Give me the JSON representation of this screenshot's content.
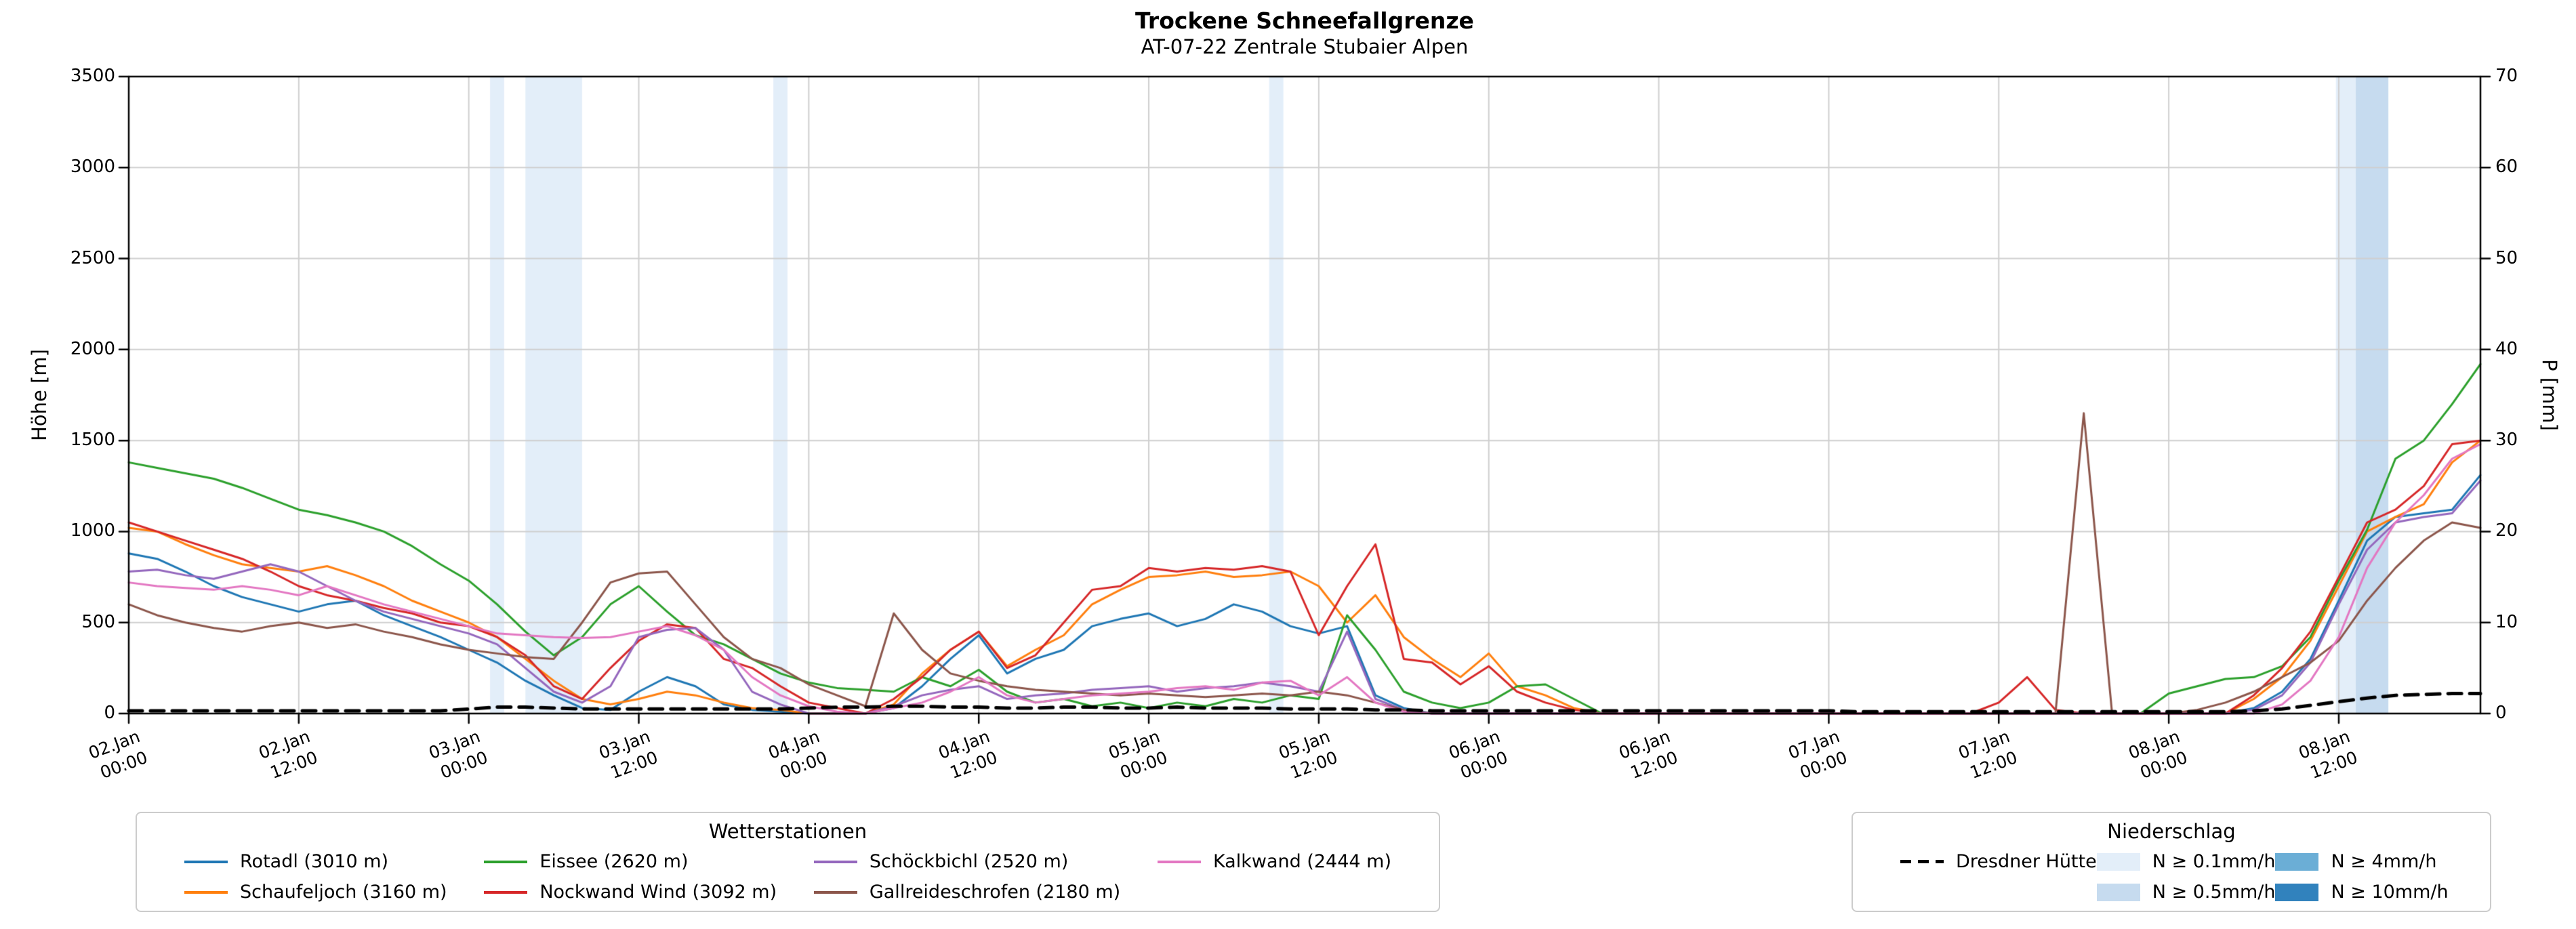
{
  "title": "Trockene Schneefallgrenze",
  "subtitle": "AT-07-22 Zentrale Stubaier Alpen",
  "axes": {
    "y_left": {
      "label": "Höhe [m]",
      "min": 0,
      "max": 3500,
      "tick_values": [
        0,
        500,
        1000,
        1500,
        2000,
        2500,
        3000,
        3500
      ],
      "tick_labels": [
        "0",
        "500",
        "1000",
        "1500",
        "2000",
        "2500",
        "3000",
        "3500"
      ]
    },
    "y_right": {
      "label": "P [mm]",
      "min": 0,
      "max": 70,
      "tick_values": [
        0,
        10,
        20,
        30,
        40,
        50,
        60,
        70
      ],
      "tick_labels": [
        "0",
        "10",
        "20",
        "30",
        "40",
        "50",
        "60",
        "70"
      ]
    },
    "x": {
      "min": 0,
      "max": 166,
      "ticks": [
        {
          "hour": 0,
          "line1": "02.Jan",
          "line2": "00:00"
        },
        {
          "hour": 12,
          "line1": "02.Jan",
          "line2": "12:00"
        },
        {
          "hour": 24,
          "line1": "03.Jan",
          "line2": "00:00"
        },
        {
          "hour": 36,
          "line1": "03.Jan",
          "line2": "12:00"
        },
        {
          "hour": 48,
          "line1": "04.Jan",
          "line2": "00:00"
        },
        {
          "hour": 60,
          "line1": "04.Jan",
          "line2": "12:00"
        },
        {
          "hour": 72,
          "line1": "05.Jan",
          "line2": "00:00"
        },
        {
          "hour": 84,
          "line1": "05.Jan",
          "line2": "12:00"
        },
        {
          "hour": 96,
          "line1": "06.Jan",
          "line2": "00:00"
        },
        {
          "hour": 108,
          "line1": "06.Jan",
          "line2": "12:00"
        },
        {
          "hour": 120,
          "line1": "07.Jan",
          "line2": "00:00"
        },
        {
          "hour": 132,
          "line1": "07.Jan",
          "line2": "12:00"
        },
        {
          "hour": 144,
          "line1": "08.Jan",
          "line2": "00:00"
        },
        {
          "hour": 156,
          "line1": "08.Jan",
          "line2": "12:00"
        }
      ]
    }
  },
  "chart_data": {
    "type": "line",
    "x_unit": "hours since 02.Jan 00:00",
    "x_hours": [
      0,
      2,
      4,
      6,
      8,
      10,
      12,
      14,
      16,
      18,
      20,
      22,
      24,
      26,
      28,
      30,
      32,
      34,
      36,
      38,
      40,
      42,
      44,
      46,
      48,
      50,
      52,
      54,
      56,
      58,
      60,
      62,
      64,
      66,
      68,
      70,
      72,
      74,
      76,
      78,
      80,
      82,
      84,
      86,
      88,
      90,
      92,
      94,
      96,
      98,
      100,
      102,
      104,
      106,
      108,
      110,
      112,
      114,
      116,
      118,
      120,
      122,
      124,
      126,
      128,
      130,
      132,
      134,
      136,
      138,
      140,
      142,
      144,
      146,
      148,
      150,
      152,
      154,
      156,
      158,
      160,
      162,
      164,
      166
    ],
    "series": [
      {
        "name": "Rotadl (3010 m)",
        "color": "#1f77b4",
        "axis": "left",
        "style": "solid",
        "values": [
          880,
          850,
          780,
          700,
          640,
          600,
          560,
          600,
          620,
          540,
          480,
          420,
          350,
          280,
          180,
          100,
          30,
          20,
          120,
          200,
          150,
          50,
          20,
          10,
          0,
          0,
          0,
          30,
          150,
          300,
          430,
          220,
          300,
          350,
          480,
          520,
          550,
          480,
          520,
          600,
          560,
          480,
          440,
          480,
          100,
          30,
          0,
          0,
          0,
          0,
          0,
          0,
          0,
          0,
          0,
          0,
          0,
          0,
          0,
          0,
          0,
          0,
          0,
          0,
          0,
          0,
          0,
          0,
          0,
          0,
          0,
          0,
          0,
          0,
          0,
          30,
          120,
          300,
          620,
          950,
          1080,
          1100,
          1120,
          1310
        ]
      },
      {
        "name": "Schaufeljoch (3160 m)",
        "color": "#ff7f0e",
        "axis": "left",
        "style": "solid",
        "values": [
          1020,
          1000,
          930,
          870,
          820,
          800,
          780,
          810,
          760,
          700,
          620,
          560,
          500,
          420,
          300,
          180,
          80,
          50,
          80,
          120,
          100,
          60,
          30,
          20,
          0,
          0,
          0,
          50,
          220,
          350,
          450,
          260,
          350,
          430,
          600,
          680,
          750,
          760,
          780,
          750,
          760,
          780,
          700,
          500,
          650,
          420,
          300,
          200,
          330,
          150,
          100,
          30,
          0,
          0,
          0,
          0,
          0,
          0,
          0,
          0,
          0,
          0,
          0,
          0,
          0,
          0,
          0,
          0,
          0,
          0,
          0,
          0,
          0,
          0,
          0,
          80,
          200,
          400,
          700,
          1000,
          1080,
          1150,
          1380,
          1500
        ]
      },
      {
        "name": "Eissee (2620 m)",
        "color": "#2ca02c",
        "axis": "left",
        "style": "solid",
        "values": [
          1380,
          1350,
          1320,
          1290,
          1240,
          1180,
          1120,
          1090,
          1050,
          1000,
          920,
          820,
          730,
          600,
          450,
          320,
          420,
          600,
          700,
          560,
          430,
          380,
          300,
          220,
          170,
          140,
          130,
          120,
          200,
          150,
          240,
          120,
          60,
          80,
          40,
          60,
          30,
          60,
          40,
          80,
          60,
          100,
          80,
          540,
          350,
          120,
          60,
          30,
          60,
          150,
          160,
          80,
          0,
          0,
          0,
          0,
          0,
          0,
          0,
          0,
          0,
          0,
          0,
          0,
          0,
          0,
          0,
          0,
          0,
          0,
          0,
          0,
          110,
          150,
          190,
          200,
          260,
          420,
          730,
          1010,
          1400,
          1500,
          1700,
          1920
        ]
      },
      {
        "name": "Nockwand Wind (3092 m)",
        "color": "#d62728",
        "axis": "left",
        "style": "solid",
        "values": [
          1050,
          1000,
          950,
          900,
          850,
          780,
          700,
          650,
          620,
          580,
          550,
          500,
          480,
          420,
          320,
          150,
          80,
          250,
          400,
          490,
          470,
          300,
          250,
          150,
          60,
          30,
          0,
          80,
          200,
          350,
          450,
          250,
          320,
          500,
          680,
          700,
          800,
          780,
          800,
          790,
          810,
          780,
          430,
          700,
          930,
          300,
          280,
          160,
          260,
          120,
          60,
          20,
          0,
          0,
          0,
          0,
          0,
          0,
          0,
          0,
          0,
          0,
          0,
          0,
          0,
          0,
          60,
          200,
          20,
          0,
          0,
          0,
          0,
          0,
          0,
          100,
          250,
          450,
          750,
          1050,
          1120,
          1250,
          1480,
          1500
        ]
      },
      {
        "name": "Schöckbichl (2520 m)",
        "color": "#9467bd",
        "axis": "left",
        "style": "solid",
        "values": [
          780,
          790,
          760,
          740,
          780,
          820,
          780,
          700,
          620,
          560,
          520,
          480,
          440,
          380,
          250,
          120,
          60,
          150,
          420,
          460,
          470,
          350,
          120,
          50,
          0,
          0,
          0,
          40,
          100,
          130,
          150,
          80,
          100,
          110,
          130,
          140,
          150,
          120,
          140,
          150,
          170,
          150,
          120,
          450,
          80,
          20,
          0,
          0,
          0,
          0,
          0,
          0,
          0,
          0,
          0,
          0,
          0,
          0,
          0,
          0,
          0,
          0,
          0,
          0,
          0,
          0,
          0,
          0,
          0,
          0,
          0,
          0,
          0,
          0,
          0,
          20,
          100,
          280,
          600,
          900,
          1050,
          1080,
          1100,
          1280
        ]
      },
      {
        "name": "Gallreideschrofen (2180 m)",
        "color": "#8c564b",
        "axis": "left",
        "style": "solid",
        "values": [
          600,
          540,
          500,
          470,
          450,
          480,
          500,
          470,
          490,
          450,
          420,
          380,
          350,
          330,
          310,
          300,
          500,
          720,
          770,
          780,
          600,
          420,
          300,
          250,
          160,
          100,
          40,
          550,
          350,
          220,
          180,
          150,
          130,
          120,
          110,
          100,
          110,
          100,
          90,
          100,
          110,
          100,
          120,
          100,
          60,
          20,
          0,
          0,
          0,
          0,
          0,
          0,
          0,
          0,
          0,
          0,
          0,
          0,
          0,
          0,
          0,
          0,
          0,
          0,
          0,
          0,
          0,
          0,
          0,
          1650,
          0,
          0,
          0,
          20,
          60,
          120,
          200,
          280,
          400,
          620,
          800,
          950,
          1050,
          1020
        ]
      },
      {
        "name": "Kalkwand (2444 m)",
        "color": "#e377c2",
        "axis": "left",
        "style": "solid",
        "values": [
          720,
          700,
          690,
          680,
          700,
          680,
          650,
          700,
          650,
          600,
          560,
          520,
          480,
          440,
          430,
          420,
          415,
          420,
          450,
          480,
          430,
          350,
          200,
          100,
          40,
          10,
          0,
          30,
          60,
          120,
          200,
          100,
          60,
          80,
          100,
          110,
          120,
          140,
          150,
          130,
          170,
          180,
          100,
          200,
          60,
          10,
          0,
          0,
          0,
          0,
          0,
          0,
          0,
          0,
          0,
          0,
          0,
          0,
          0,
          0,
          0,
          0,
          0,
          0,
          0,
          0,
          0,
          0,
          0,
          0,
          0,
          0,
          0,
          0,
          0,
          0,
          50,
          180,
          420,
          800,
          1050,
          1200,
          1400,
          1480
        ]
      },
      {
        "name": "Dresdner Hütte",
        "color": "#000000",
        "axis": "right",
        "style": "dashed",
        "values": [
          0.3,
          0.3,
          0.3,
          0.3,
          0.3,
          0.3,
          0.3,
          0.3,
          0.3,
          0.3,
          0.3,
          0.3,
          0.5,
          0.7,
          0.7,
          0.6,
          0.5,
          0.5,
          0.5,
          0.5,
          0.5,
          0.5,
          0.5,
          0.5,
          0.6,
          0.7,
          0.7,
          0.8,
          0.8,
          0.7,
          0.7,
          0.6,
          0.6,
          0.7,
          0.7,
          0.6,
          0.6,
          0.7,
          0.6,
          0.6,
          0.6,
          0.5,
          0.5,
          0.5,
          0.4,
          0.4,
          0.3,
          0.3,
          0.3,
          0.3,
          0.3,
          0.3,
          0.3,
          0.3,
          0.3,
          0.3,
          0.3,
          0.3,
          0.3,
          0.3,
          0.3,
          0.2,
          0.2,
          0.2,
          0.2,
          0.2,
          0.2,
          0.2,
          0.2,
          0.2,
          0.2,
          0.2,
          0.2,
          0.2,
          0.2,
          0.3,
          0.5,
          0.9,
          1.3,
          1.7,
          2.0,
          2.1,
          2.2,
          2.2
        ]
      }
    ],
    "precip_bands": [
      {
        "start": 25.5,
        "end": 26.5,
        "level": "0.1"
      },
      {
        "start": 28,
        "end": 32,
        "level": "0.1"
      },
      {
        "start": 45.5,
        "end": 46.5,
        "level": "0.1"
      },
      {
        "start": 80.5,
        "end": 81.5,
        "level": "0.1"
      },
      {
        "start": 155.8,
        "end": 157.2,
        "level": "0.1"
      },
      {
        "start": 157.2,
        "end": 159.5,
        "level": "0.5"
      }
    ],
    "band_colors": {
      "0.1": "#e3eef9",
      "0.5": "#c6dbef",
      "4": "#6baed6",
      "10": "#3182bd"
    }
  },
  "legends": {
    "stations_title": "Wetterstationen",
    "precip_title": "Niederschlag",
    "precip_items": [
      {
        "label": "N ≥ 0.1mm/h",
        "level": "0.1"
      },
      {
        "label": "N ≥ 0.5mm/h",
        "level": "0.5"
      },
      {
        "label": "N ≥ 4mm/h",
        "level": "4"
      },
      {
        "label": "N ≥ 10mm/h",
        "level": "10"
      }
    ]
  }
}
